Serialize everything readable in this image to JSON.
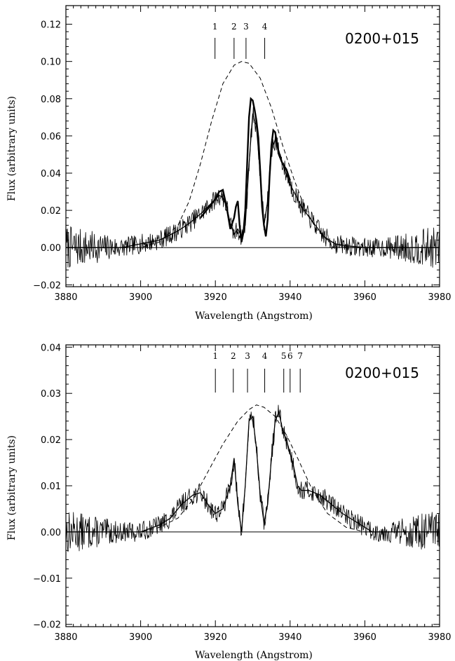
{
  "chart_data": [
    {
      "type": "line",
      "object_label": "0200+015",
      "xlabel": "Wavelength (Angstrom)",
      "ylabel": "Flux (arbitrary units)",
      "xlim": [
        3880,
        3980
      ],
      "ylim": [
        -0.021,
        0.13
      ],
      "x_ticks": [
        3880,
        3900,
        3920,
        3940,
        3960,
        3980
      ],
      "x_tick_labels": [
        "3880",
        "3900",
        "3920",
        "3940",
        "3960",
        "3980"
      ],
      "y_ticks": [
        -0.02,
        0.0,
        0.02,
        0.04,
        0.06,
        0.08,
        0.1,
        0.12
      ],
      "y_tick_labels": [
        "−0.02",
        "0.00",
        "0.02",
        "0.04",
        "0.06",
        "0.08",
        "0.10",
        "0.12"
      ],
      "zero_line": true,
      "markers": [
        {
          "label": "1",
          "x": 3919.9
        },
        {
          "label": "2",
          "x": 3925.0
        },
        {
          "label": "3",
          "x": 3928.2
        },
        {
          "label": "4",
          "x": 3933.2
        }
      ],
      "series": [
        {
          "style": "dashed",
          "x": [
            3880,
            3900,
            3905,
            3910,
            3913,
            3916,
            3919,
            3922,
            3925,
            3927,
            3929,
            3932,
            3935,
            3938,
            3941,
            3944,
            3947,
            3950,
            3955,
            3960,
            3980
          ],
          "y": [
            0.0,
            0.0,
            0.003,
            0.012,
            0.025,
            0.045,
            0.068,
            0.088,
            0.098,
            0.1,
            0.099,
            0.091,
            0.075,
            0.055,
            0.037,
            0.021,
            0.01,
            0.004,
            0.0,
            0.0,
            0.0
          ]
        },
        {
          "style": "smooth",
          "x": [
            3880,
            3895,
            3900,
            3905,
            3910,
            3913,
            3916,
            3919,
            3921,
            3922,
            3923,
            3924,
            3925,
            3926,
            3927,
            3928,
            3929,
            3930,
            3931,
            3932,
            3933,
            3934,
            3935,
            3936,
            3937,
            3938,
            3940,
            3943,
            3946,
            3949,
            3952,
            3955,
            3960,
            3980
          ],
          "y": [
            0.0,
            0.0,
            0.002,
            0.004,
            0.009,
            0.013,
            0.018,
            0.024,
            0.028,
            0.027,
            0.022,
            0.013,
            0.007,
            0.01,
            0.006,
            0.012,
            0.045,
            0.072,
            0.065,
            0.04,
            0.012,
            0.025,
            0.052,
            0.058,
            0.052,
            0.045,
            0.034,
            0.022,
            0.014,
            0.006,
            0.002,
            0.001,
            0.0,
            0.0
          ]
        },
        {
          "style": "thick",
          "x": [
            3916,
            3918,
            3920,
            3921,
            3922,
            3923,
            3924,
            3925,
            3925.5,
            3926,
            3926.5,
            3927,
            3927.5,
            3928,
            3928.5,
            3929,
            3929.5,
            3930,
            3930.5,
            3931,
            3931.5,
            3932,
            3932.5,
            3933,
            3933.5,
            3934,
            3934.5,
            3935,
            3935.5,
            3936,
            3937,
            3938,
            3939,
            3940
          ],
          "y": [
            0.016,
            0.021,
            0.026,
            0.03,
            0.031,
            0.022,
            0.01,
            0.016,
            0.022,
            0.025,
            0.012,
            0.003,
            0.008,
            0.02,
            0.045,
            0.07,
            0.08,
            0.079,
            0.074,
            0.068,
            0.059,
            0.041,
            0.022,
            0.012,
            0.006,
            0.015,
            0.038,
            0.055,
            0.063,
            0.062,
            0.05,
            0.045,
            0.042,
            0.036
          ]
        }
      ]
    },
    {
      "type": "line",
      "object_label": "0200+015",
      "xlabel": "Wavelength (Angstrom)",
      "ylabel": "Flux (arbitrary units)",
      "xlim": [
        3880,
        3980
      ],
      "ylim": [
        -0.0205,
        0.0405
      ],
      "x_ticks": [
        3880,
        3900,
        3920,
        3940,
        3960,
        3980
      ],
      "x_tick_labels": [
        "3880",
        "3900",
        "3920",
        "3940",
        "3960",
        "3980"
      ],
      "y_ticks": [
        -0.02,
        -0.01,
        0.0,
        0.01,
        0.02,
        0.03,
        0.04
      ],
      "y_tick_labels": [
        "−0.02",
        "−0.01",
        "0.00",
        "0.01",
        "0.02",
        "0.03",
        "0.04"
      ],
      "zero_line": true,
      "markers": [
        {
          "label": "1",
          "x": 3920.0
        },
        {
          "label": "2",
          "x": 3924.8
        },
        {
          "label": "3",
          "x": 3928.6
        },
        {
          "label": "4",
          "x": 3933.2
        },
        {
          "label": "5",
          "x": 3938.3
        },
        {
          "label": "6",
          "x": 3940.0
        },
        {
          "label": "7",
          "x": 3942.7
        }
      ],
      "series": [
        {
          "style": "dashed",
          "x": [
            3880,
            3900,
            3905,
            3910,
            3914,
            3918,
            3922,
            3926,
            3929,
            3931,
            3933,
            3936,
            3939,
            3942,
            3946,
            3950,
            3955,
            3960,
            3980
          ],
          "y": [
            0.0,
            0.0,
            0.001,
            0.003,
            0.007,
            0.013,
            0.019,
            0.024,
            0.0265,
            0.0275,
            0.027,
            0.025,
            0.021,
            0.016,
            0.009,
            0.004,
            0.001,
            0.0,
            0.0
          ]
        },
        {
          "style": "smooth",
          "x": [
            3880,
            3900,
            3905,
            3908,
            3911,
            3914,
            3916,
            3918,
            3920,
            3922,
            3924,
            3925,
            3926,
            3927,
            3928,
            3929,
            3930,
            3931,
            3932,
            3933,
            3934,
            3935,
            3936,
            3937,
            3938,
            3939,
            3940,
            3941,
            3942,
            3943,
            3945,
            3948,
            3951,
            3954,
            3958,
            3962,
            3980
          ],
          "y": [
            0.0,
            0.0,
            0.0015,
            0.003,
            0.006,
            0.008,
            0.0085,
            0.006,
            0.004,
            0.005,
            0.01,
            0.016,
            0.006,
            0.0,
            0.01,
            0.024,
            0.025,
            0.018,
            0.008,
            0.002,
            0.006,
            0.016,
            0.024,
            0.026,
            0.022,
            0.02,
            0.017,
            0.014,
            0.01,
            0.009,
            0.009,
            0.008,
            0.006,
            0.004,
            0.002,
            0.0,
            0.0
          ]
        }
      ]
    }
  ]
}
